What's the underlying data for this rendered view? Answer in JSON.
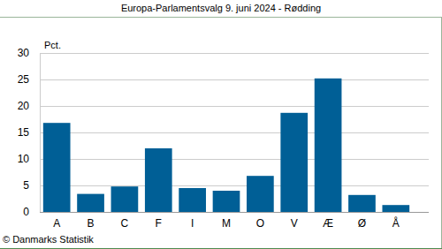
{
  "chart_data": {
    "type": "bar",
    "title": "Europa-Parlamentsvalg 9. juni 2024 - Rødding",
    "ylabel": "Pct.",
    "annotations": [
      "© Danmarks Statistik"
    ],
    "categories": [
      "A",
      "B",
      "C",
      "F",
      "I",
      "M",
      "O",
      "V",
      "Æ",
      "Ø",
      "Å"
    ],
    "values": [
      16.8,
      3.4,
      4.8,
      12.0,
      4.5,
      4.0,
      6.8,
      18.7,
      25.2,
      3.2,
      1.3
    ],
    "color": "#005f96",
    "ylim": [
      0,
      30
    ],
    "yticks": [
      0,
      5,
      10,
      15,
      20,
      25,
      30
    ],
    "grid": true
  }
}
